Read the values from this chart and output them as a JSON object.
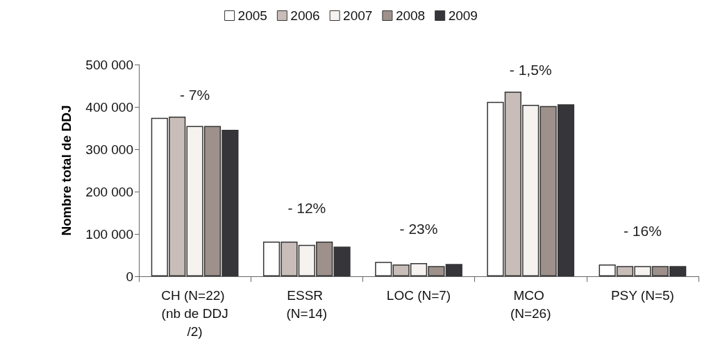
{
  "chart_data": {
    "type": "bar",
    "ylabel": "Nombre total de DDJ",
    "categories": [
      "CH (N=22) (nb de DDJ/2)",
      "ESSR (N=14)",
      "LOC (N=7)",
      "MCO (N=26)",
      "PSY (N=5)"
    ],
    "series": [
      {
        "name": "2005",
        "color": "#ffffff",
        "values": [
          374000,
          82000,
          34000,
          412000,
          28000
        ]
      },
      {
        "name": "2006",
        "color": "#c8bdb8",
        "values": [
          377000,
          82000,
          28000,
          436000,
          24000
        ]
      },
      {
        "name": "2007",
        "color": "#f6f2f0",
        "values": [
          355000,
          74000,
          31000,
          405000,
          24000
        ]
      },
      {
        "name": "2008",
        "color": "#9e918c",
        "values": [
          355000,
          82000,
          24000,
          402000,
          24000
        ]
      },
      {
        "name": "2009",
        "color": "#36353a",
        "values": [
          346000,
          70000,
          29000,
          406000,
          24000
        ]
      }
    ],
    "ylim": [
      0,
      500000
    ],
    "yticks": [
      {
        "value": 0,
        "label": "0"
      },
      {
        "value": 100000,
        "label": "100 000"
      },
      {
        "value": 200000,
        "label": "200 000"
      },
      {
        "value": 300000,
        "label": "300 000"
      },
      {
        "value": 400000,
        "label": "400 000"
      },
      {
        "value": 500000,
        "label": "500 000"
      }
    ],
    "annotations": [
      "- 7%",
      "- 12%",
      "- 23%",
      "- 1,5%",
      "- 16%"
    ],
    "legend": "top",
    "grid": false
  }
}
